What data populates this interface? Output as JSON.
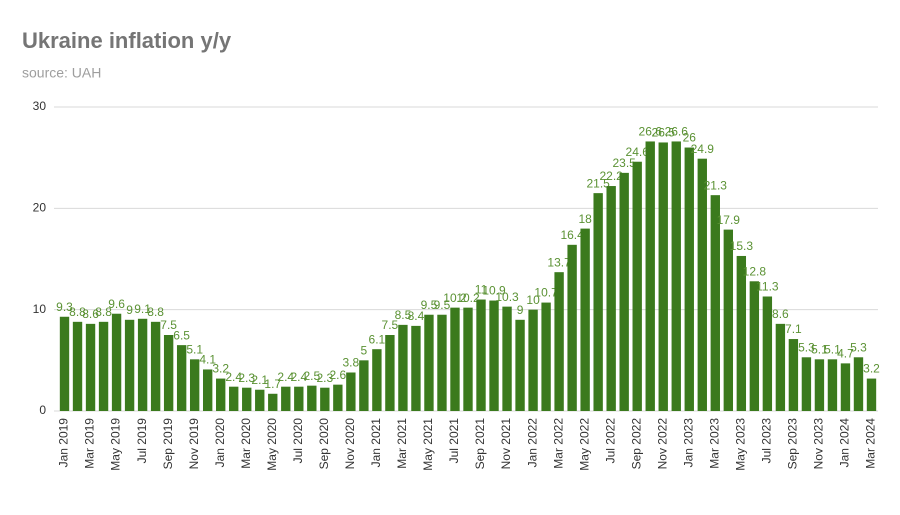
{
  "chart_data": {
    "type": "bar",
    "title": "Ukraine inflation y/y",
    "subtitle": "source: UAH",
    "categories": [
      "Jan 2019",
      null,
      "Mar 2019",
      null,
      "May 2019",
      null,
      "Jul 2019",
      null,
      "Sep 2019",
      null,
      "Nov 2019",
      null,
      "Jan 2020",
      null,
      "Mar 2020",
      null,
      "May 2020",
      null,
      "Jul 2020",
      null,
      "Sep 2020",
      null,
      "Nov 2020",
      null,
      "Jan 2021",
      null,
      "Mar 2021",
      null,
      "May 2021",
      null,
      "Jul 2021",
      null,
      "Sep 2021",
      null,
      "Nov 2021",
      null,
      "Jan 2022",
      null,
      "Mar 2022",
      null,
      "May 2022",
      null,
      "Jul 2022",
      null,
      "Sep 2022",
      null,
      "Nov 2022",
      null,
      "Jan 2023",
      null,
      "Mar 2023",
      null,
      "May 2023",
      null,
      "Jul 2023",
      null,
      "Sep 2023",
      null,
      "Nov 2023",
      null,
      "Jan 2024",
      null,
      "Mar 2024"
    ],
    "values": [
      9.3,
      8.8,
      8.6,
      8.8,
      9.6,
      9,
      9.1,
      8.8,
      7.5,
      6.5,
      5.1,
      4.1,
      3.2,
      2.4,
      2.3,
      2.1,
      1.7,
      2.4,
      2.4,
      2.5,
      2.3,
      2.6,
      3.8,
      5,
      6.1,
      7.5,
      8.5,
      8.4,
      9.5,
      9.5,
      10.2,
      10.2,
      11,
      10.9,
      10.3,
      9,
      10,
      10.7,
      13.7,
      16.4,
      18,
      21.5,
      22.2,
      23.5,
      24.6,
      26.6,
      26.5,
      26.6,
      26,
      24.9,
      21.3,
      17.9,
      15.3,
      12.8,
      11.3,
      8.6,
      7.1,
      5.3,
      5.1,
      5.1,
      4.7,
      5.3,
      3.2
    ],
    "color": "#3b7a1d",
    "label_color": "#5b9234",
    "ylim": [
      0,
      30
    ],
    "yticks": [
      0,
      10,
      20,
      30
    ],
    "grid": true
  }
}
